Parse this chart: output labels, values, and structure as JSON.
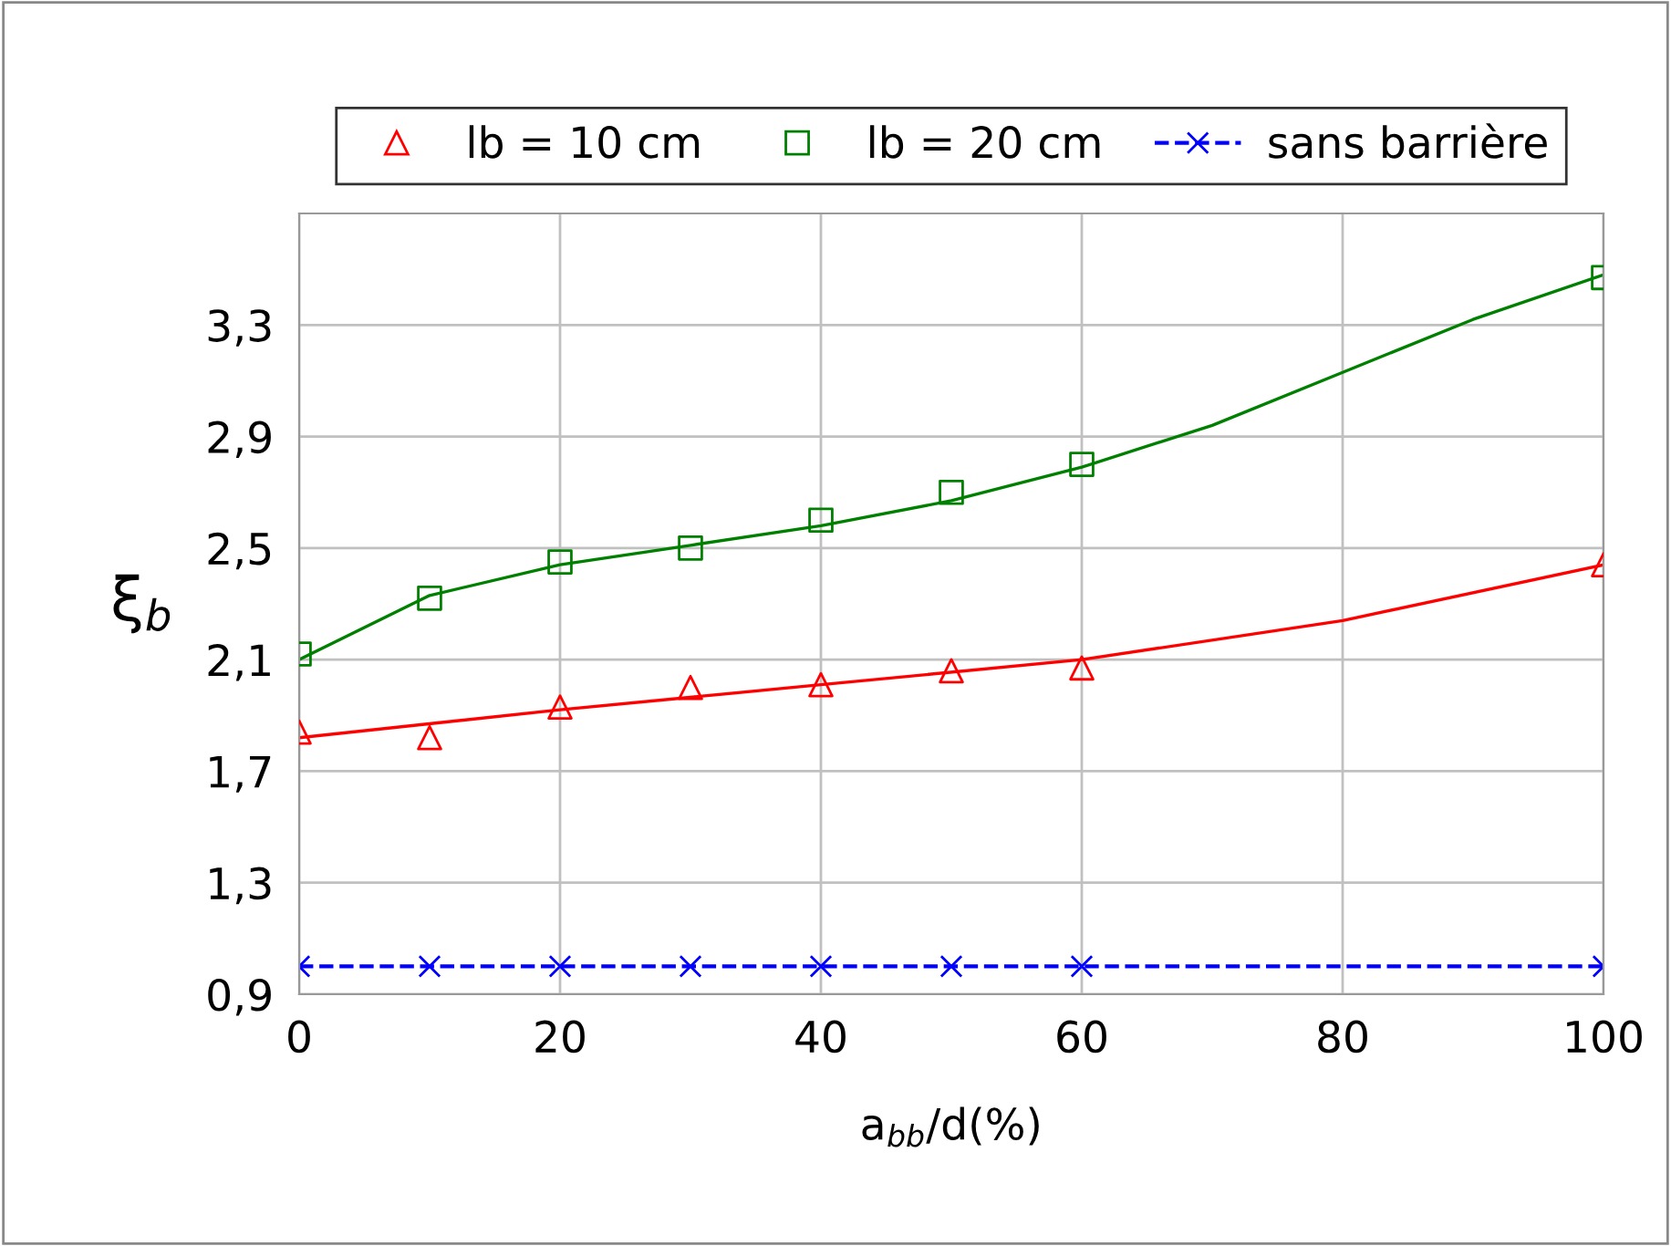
{
  "chart_data": {
    "type": "scatter",
    "xlabel": "a$_{bb}$/d(%)",
    "ylabel": "ξ$_{b}$",
    "xlim": [
      0,
      100
    ],
    "ylim": [
      0.9,
      3.7
    ],
    "xticks": [
      0,
      20,
      40,
      60,
      80,
      100
    ],
    "yticks": [
      {
        "value": 0.9,
        "label": "0,9"
      },
      {
        "value": 1.3,
        "label": "1,3"
      },
      {
        "value": 1.7,
        "label": "1,7"
      },
      {
        "value": 2.1,
        "label": "2,1"
      },
      {
        "value": 2.5,
        "label": "2,5"
      },
      {
        "value": 2.9,
        "label": "2,9"
      },
      {
        "value": 3.3,
        "label": "3,3"
      }
    ],
    "grid": true,
    "legend": "top",
    "series": [
      {
        "name": "lb = 10 cm",
        "marker": "triangle",
        "color": "#ff0000",
        "x": [
          0,
          10,
          20,
          30,
          40,
          50,
          60,
          100
        ],
        "values": [
          1.84,
          1.82,
          1.93,
          2.0,
          2.01,
          2.06,
          2.07,
          2.44
        ]
      },
      {
        "name": "lb = 20 cm",
        "marker": "square",
        "color": "#008000",
        "x": [
          0,
          10,
          20,
          30,
          40,
          50,
          60,
          100
        ],
        "values": [
          2.12,
          2.32,
          2.45,
          2.5,
          2.6,
          2.7,
          2.8,
          3.47
        ]
      },
      {
        "name": "sans barrière",
        "type": "line",
        "marker": "cross",
        "line_style": "dashed",
        "color": "#0000ff",
        "x": [
          0,
          10,
          20,
          30,
          40,
          50,
          60,
          100
        ],
        "values": [
          1.0,
          1.0,
          1.0,
          1.0,
          1.0,
          1.0,
          1.0,
          1.0
        ]
      },
      {
        "type": "line",
        "marker": "none",
        "line_style": "solid",
        "color": "#ff0000",
        "x": [
          0,
          20,
          40,
          60,
          80,
          100
        ],
        "values": [
          1.82,
          1.92,
          2.01,
          2.1,
          2.24,
          2.44
        ]
      },
      {
        "type": "line",
        "marker": "none",
        "line_style": "solid",
        "color": "#008000",
        "x": [
          0,
          10,
          20,
          30,
          40,
          50,
          60,
          70,
          80,
          90,
          100
        ],
        "values": [
          2.1,
          2.33,
          2.44,
          2.51,
          2.58,
          2.67,
          2.79,
          2.94,
          3.13,
          3.32,
          3.48
        ]
      }
    ]
  }
}
